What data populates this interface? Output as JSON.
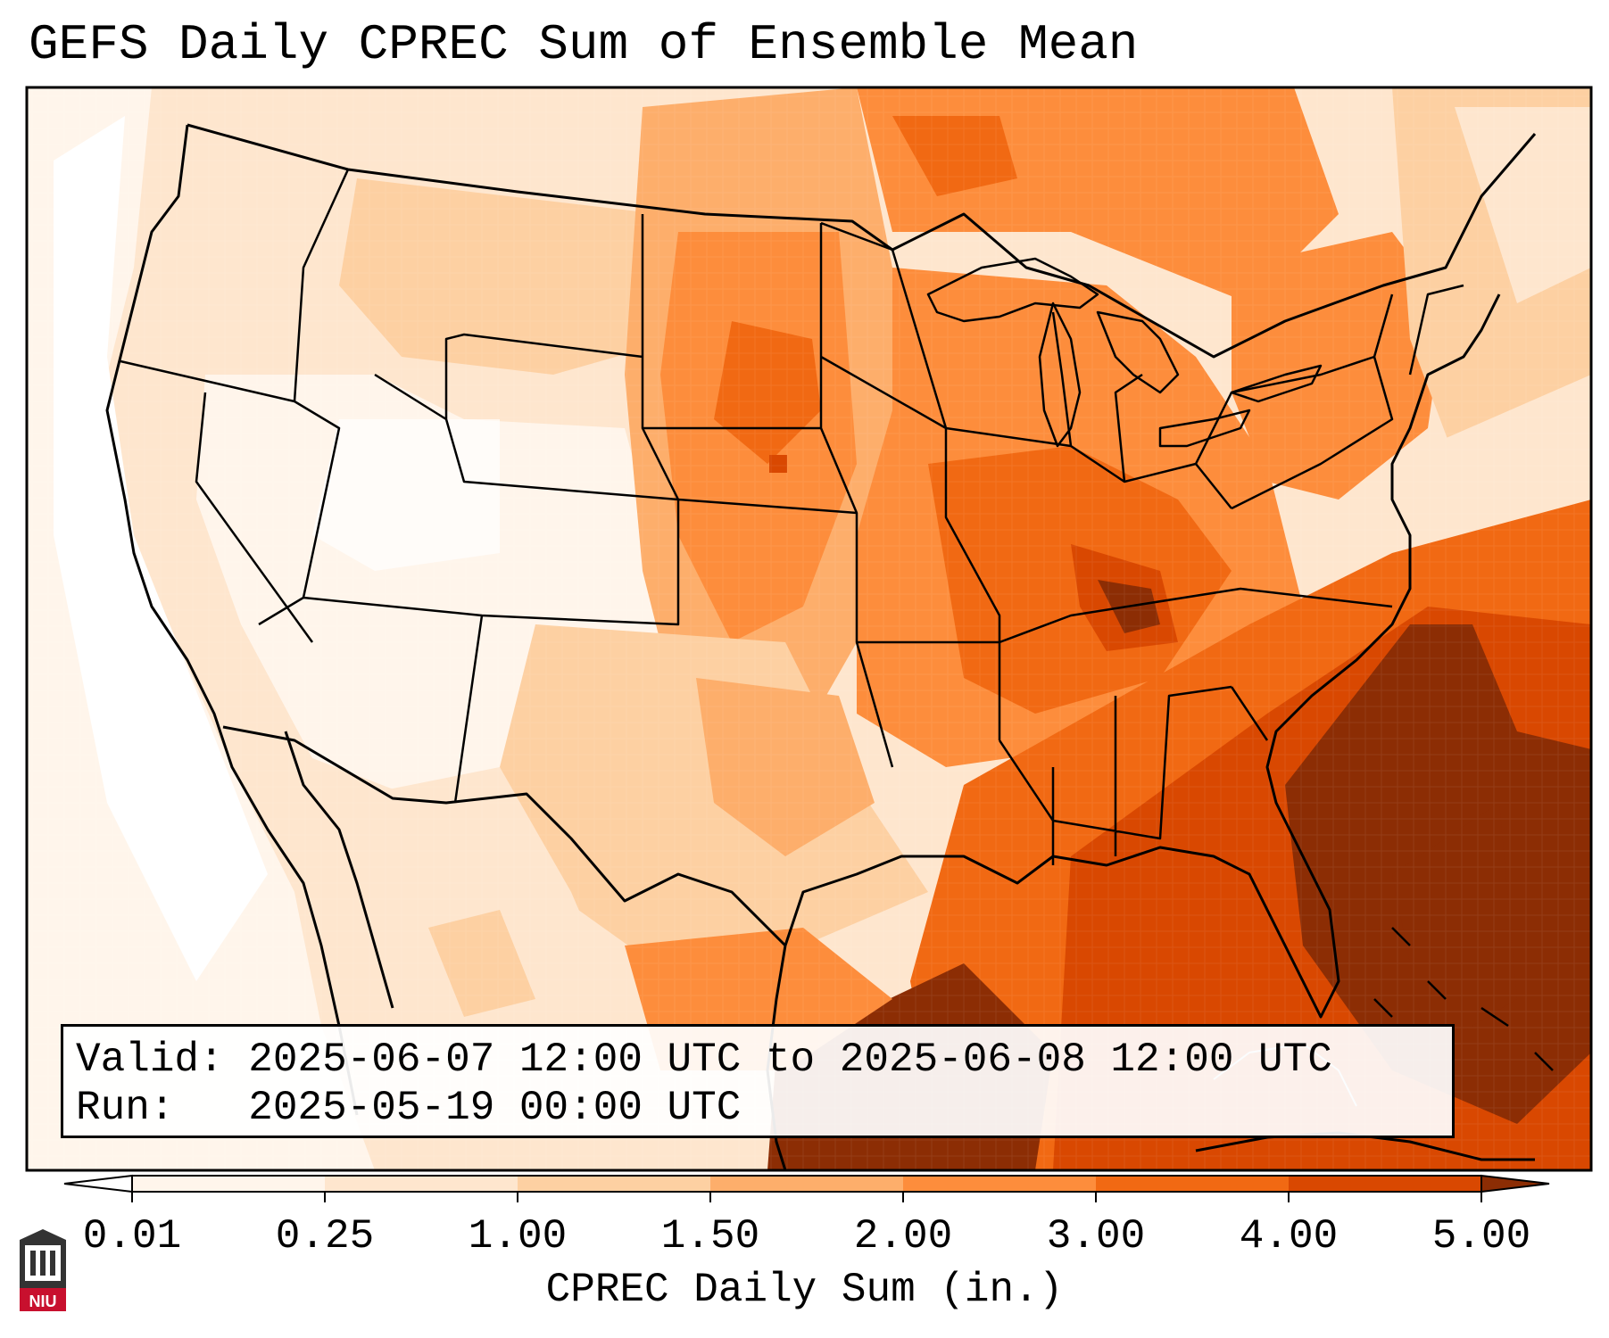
{
  "title": "GEFS Daily CPREC Sum of Ensemble Mean",
  "info": {
    "valid_label": "Valid:",
    "valid_value": "2025-06-07 12:00 UTC to 2025-06-08 12:00 UTC",
    "run_label": "Run:",
    "run_value": "2025-05-19 00:00 UTC"
  },
  "colorbar": {
    "label": "CPREC Daily Sum (in.)",
    "ticks": [
      "0.01",
      "0.25",
      "1.00",
      "1.50",
      "2.00",
      "3.00",
      "4.00",
      "5.00"
    ],
    "colors": [
      "#fff5eb",
      "#fee6ce",
      "#fdd0a2",
      "#fdae6b",
      "#fd8d3c",
      "#f16913",
      "#d94801",
      "#8c2d04"
    ],
    "extend": "both"
  },
  "logo": {
    "text": "NIU",
    "color": "#c8102e"
  },
  "map": {
    "region": "Continental United States",
    "heaviest_area": "Southeast coast and western Atlantic",
    "lightest_area": "Desert Southwest and Pacific Coast"
  }
}
